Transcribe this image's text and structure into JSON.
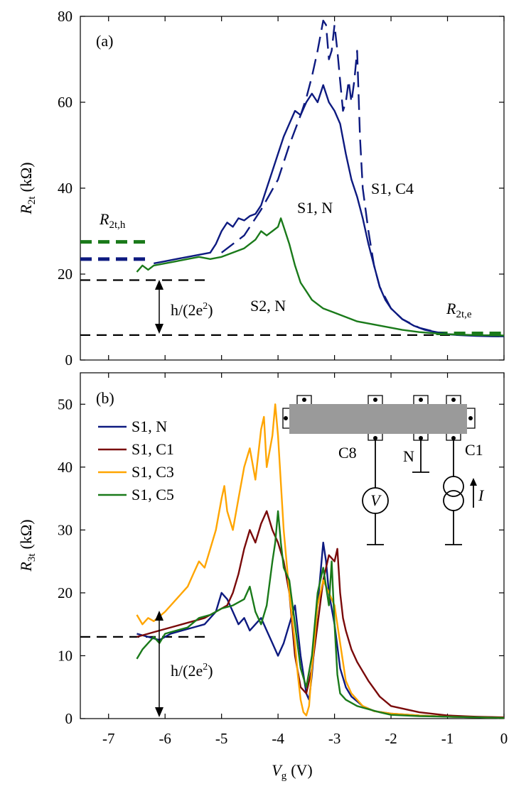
{
  "chart_data": [
    {
      "panel": "(a)",
      "type": "line",
      "xlabel": "V_g (V)",
      "ylabel": "R_2t (kΩ)",
      "xlim": [
        -7.5,
        0
      ],
      "ylim": [
        0,
        80
      ],
      "xticks": [
        -7,
        -6,
        -5,
        -4,
        -3,
        -2,
        -1,
        0
      ],
      "xtick_labels": [
        "-7",
        "-6",
        "-5",
        "-4",
        "-3",
        "-2",
        "-1",
        "0"
      ],
      "yticks": [
        0,
        20,
        40,
        60,
        80
      ],
      "ytick_labels": [
        "0",
        "20",
        "40",
        "60",
        "80"
      ],
      "series": [
        {
          "name": "S1, N",
          "color": "#0d1a80",
          "style": "solid",
          "x": [
            -6.2,
            -6.0,
            -5.8,
            -5.6,
            -5.4,
            -5.2,
            -5.1,
            -5.0,
            -4.9,
            -4.8,
            -4.7,
            -4.6,
            -4.5,
            -4.4,
            -4.3,
            -4.2,
            -4.1,
            -4.0,
            -3.9,
            -3.8,
            -3.7,
            -3.6,
            -3.5,
            -3.4,
            -3.3,
            -3.2,
            -3.1,
            -3.0,
            -2.9,
            -2.8,
            -2.7,
            -2.6,
            -2.5,
            -2.4,
            -2.3,
            -2.2,
            -2.1,
            -2.0,
            -1.8,
            -1.6,
            -1.4,
            -1.2,
            -1.0,
            -0.8,
            -0.5,
            -0.2,
            0.0
          ],
          "y": [
            22.5,
            23.0,
            23.5,
            24.0,
            24.5,
            25.0,
            27.0,
            30.0,
            32.0,
            31.0,
            33.0,
            32.5,
            33.5,
            34.0,
            36.0,
            40.0,
            44.0,
            48.0,
            52.0,
            55.0,
            58.0,
            57.0,
            60.0,
            62.0,
            60.0,
            64.0,
            60.0,
            58.0,
            55.0,
            48.0,
            42.0,
            38.0,
            33.0,
            27.0,
            22.0,
            17.0,
            14.0,
            12.0,
            9.5,
            8.0,
            7.0,
            6.5,
            6.0,
            5.8,
            5.6,
            5.5,
            5.5
          ]
        },
        {
          "name": "S1, C4",
          "color": "#0d1a80",
          "style": "dashed",
          "x": [
            -5.0,
            -4.6,
            -4.3,
            -4.0,
            -3.8,
            -3.6,
            -3.5,
            -3.4,
            -3.3,
            -3.2,
            -3.15,
            -3.1,
            -3.05,
            -3.0,
            -2.95,
            -2.9,
            -2.85,
            -2.8,
            -2.75,
            -2.7,
            -2.65,
            -2.6,
            -2.55,
            -2.5,
            -2.4,
            -2.3,
            -2.2,
            -2.0,
            -1.8,
            -1.5,
            -1.2,
            -1.0,
            -0.5,
            0.0
          ],
          "y": [
            25.0,
            29.0,
            35.0,
            42.0,
            50.0,
            57.0,
            61.0,
            66.0,
            72.0,
            79.0,
            78.0,
            70.0,
            72.0,
            78.0,
            72.0,
            65.0,
            58.0,
            60.0,
            65.0,
            60.0,
            65.0,
            72.0,
            52.0,
            40.0,
            30.0,
            22.0,
            17.0,
            12.0,
            9.5,
            7.5,
            6.5,
            6.0,
            5.7,
            5.5
          ]
        },
        {
          "name": "S2, N",
          "color": "#1a7a1a",
          "style": "solid",
          "x": [
            -6.5,
            -6.4,
            -6.3,
            -6.2,
            -6.0,
            -5.8,
            -5.6,
            -5.4,
            -5.2,
            -5.0,
            -4.8,
            -4.6,
            -4.4,
            -4.3,
            -4.2,
            -4.1,
            -4.0,
            -3.95,
            -3.9,
            -3.8,
            -3.7,
            -3.6,
            -3.5,
            -3.4,
            -3.3,
            -3.2,
            -3.0,
            -2.8,
            -2.6,
            -2.4,
            -2.2,
            -2.0,
            -1.8,
            -1.5,
            -1.2,
            -1.0,
            -0.5,
            0.0
          ],
          "y": [
            20.5,
            22.0,
            21.0,
            22.0,
            22.5,
            23.0,
            23.5,
            24.0,
            23.5,
            24.0,
            25.0,
            26.0,
            28.0,
            30.0,
            29.0,
            30.0,
            31.0,
            33.0,
            31.0,
            27.0,
            22.0,
            18.0,
            16.0,
            14.0,
            13.0,
            12.0,
            11.0,
            10.0,
            9.0,
            8.5,
            8.0,
            7.5,
            7.0,
            6.5,
            6.2,
            6.0,
            5.8,
            5.7
          ]
        }
      ],
      "hlines": [
        {
          "name": "R_2t,h S2",
          "y": 27.5,
          "x_from": -7.5,
          "x_to": -6.3,
          "color": "#1a7a1a",
          "style": "dashed-thick"
        },
        {
          "name": "R_2t,h S1",
          "y": 23.5,
          "x_from": -7.5,
          "x_to": -6.3,
          "color": "#0d1a80",
          "style": "dashed-thick"
        },
        {
          "name": "upper reference",
          "y": 18.6,
          "x_from": -7.5,
          "x_to": -5.2,
          "color": "#000000",
          "style": "dashed"
        },
        {
          "name": "lower reference",
          "y": 5.8,
          "x_from": -7.5,
          "x_to": 0,
          "color": "#000000",
          "style": "dashed"
        },
        {
          "name": "R_2t,e",
          "y": 6.2,
          "x_from": -1.2,
          "x_to": 0,
          "color": "#1a7a1a",
          "style": "dashed-thick"
        }
      ],
      "annotations": [
        "S1, N",
        "S1, C4",
        "S2, N",
        "R_2t,h",
        "R_2t,e",
        "h/(2e^2)"
      ]
    },
    {
      "panel": "(b)",
      "type": "line",
      "xlabel": "V_g (V)",
      "ylabel": "R_3t (kΩ)",
      "xlim": [
        -7.5,
        0
      ],
      "ylim": [
        0,
        55
      ],
      "xticks": [
        -7,
        -6,
        -5,
        -4,
        -3,
        -2,
        -1,
        0
      ],
      "xtick_labels": [
        "-7",
        "-6",
        "-5",
        "-4",
        "-3",
        "-2",
        "-1",
        "0"
      ],
      "yticks": [
        0,
        10,
        20,
        30,
        40,
        50
      ],
      "ytick_labels": [
        "0",
        "10",
        "20",
        "30",
        "40",
        "50"
      ],
      "legend": "top-left",
      "series": [
        {
          "name": "S1, N",
          "color": "#0d1a80",
          "style": "solid",
          "x": [
            -6.5,
            -6.3,
            -6.1,
            -5.9,
            -5.7,
            -5.5,
            -5.3,
            -5.1,
            -5.0,
            -4.9,
            -4.8,
            -4.7,
            -4.6,
            -4.5,
            -4.4,
            -4.3,
            -4.2,
            -4.1,
            -4.0,
            -3.9,
            -3.8,
            -3.7,
            -3.6,
            -3.5,
            -3.45,
            -3.4,
            -3.3,
            -3.2,
            -3.15,
            -3.1,
            -3.0,
            -2.9,
            -2.8,
            -2.7,
            -2.5,
            -2.3,
            -2.0,
            -1.5,
            -1.0,
            -0.5,
            0.0
          ],
          "y": [
            13.5,
            13.0,
            12.5,
            13.5,
            14.0,
            14.5,
            15.0,
            17.0,
            20.0,
            19.0,
            17.0,
            15.0,
            16.0,
            14.0,
            15.0,
            16.0,
            14.0,
            12.0,
            10.0,
            12.0,
            15.0,
            18.0,
            10.0,
            4.0,
            3.0,
            7.0,
            18.0,
            28.0,
            25.0,
            20.0,
            15.0,
            8.0,
            5.0,
            3.5,
            2.0,
            1.2,
            0.8,
            0.5,
            0.3,
            0.2,
            0.1
          ]
        },
        {
          "name": "S1, C1",
          "color": "#7a0a0a",
          "style": "solid",
          "x": [
            -6.5,
            -6.3,
            -6.1,
            -5.9,
            -5.7,
            -5.5,
            -5.3,
            -5.1,
            -4.9,
            -4.8,
            -4.7,
            -4.6,
            -4.5,
            -4.4,
            -4.3,
            -4.2,
            -4.1,
            -4.0,
            -3.9,
            -3.8,
            -3.7,
            -3.6,
            -3.5,
            -3.4,
            -3.3,
            -3.2,
            -3.1,
            -3.0,
            -2.95,
            -2.9,
            -2.85,
            -2.8,
            -2.7,
            -2.6,
            -2.4,
            -2.2,
            -2.0,
            -1.5,
            -1.0,
            -0.5,
            0.0
          ],
          "y": [
            13.0,
            13.5,
            14.0,
            14.5,
            15.0,
            15.5,
            16.0,
            17.0,
            18.0,
            20.0,
            23.0,
            27.0,
            30.0,
            28.0,
            31.0,
            33.0,
            30.0,
            28.0,
            25.0,
            20.0,
            10.0,
            5.0,
            4.0,
            8.0,
            15.0,
            22.0,
            26.0,
            25.0,
            27.0,
            20.0,
            16.0,
            14.0,
            11.0,
            9.0,
            6.0,
            3.5,
            2.0,
            1.0,
            0.5,
            0.3,
            0.2
          ]
        },
        {
          "name": "S1, C3",
          "color": "#ffa500",
          "style": "solid",
          "x": [
            -6.5,
            -6.4,
            -6.3,
            -6.2,
            -6.0,
            -5.8,
            -5.6,
            -5.5,
            -5.4,
            -5.3,
            -5.2,
            -5.1,
            -5.0,
            -4.95,
            -4.9,
            -4.8,
            -4.7,
            -4.6,
            -4.5,
            -4.4,
            -4.3,
            -4.25,
            -4.2,
            -4.1,
            -4.05,
            -4.0,
            -3.9,
            -3.8,
            -3.7,
            -3.65,
            -3.6,
            -3.55,
            -3.5,
            -3.45,
            -3.4,
            -3.3,
            -3.2,
            -3.1,
            -3.0,
            -2.9,
            -2.8,
            -2.7,
            -2.5,
            -2.3,
            -2.0,
            -1.5,
            -1.0,
            -0.5,
            0.0
          ],
          "y": [
            16.5,
            15.0,
            16.0,
            15.5,
            17.0,
            19.0,
            21.0,
            23.0,
            25.0,
            24.0,
            27.0,
            30.0,
            35.0,
            37.0,
            33.0,
            30.0,
            35.0,
            40.0,
            43.0,
            38.0,
            46.0,
            48.0,
            40.0,
            45.0,
            50.0,
            45.0,
            30.0,
            20.0,
            12.0,
            7.0,
            3.0,
            1.0,
            0.5,
            2.0,
            8.0,
            18.0,
            22.0,
            20.0,
            18.0,
            12.0,
            6.0,
            4.0,
            2.0,
            1.2,
            0.8,
            0.5,
            0.3,
            0.2,
            0.1
          ]
        },
        {
          "name": "S1, C5",
          "color": "#1a7a1a",
          "style": "solid",
          "x": [
            -6.5,
            -6.4,
            -6.3,
            -6.2,
            -6.1,
            -6.0,
            -5.8,
            -5.6,
            -5.4,
            -5.2,
            -5.0,
            -4.8,
            -4.6,
            -4.5,
            -4.4,
            -4.3,
            -4.2,
            -4.1,
            -4.05,
            -4.0,
            -3.95,
            -3.9,
            -3.8,
            -3.7,
            -3.6,
            -3.5,
            -3.4,
            -3.3,
            -3.2,
            -3.1,
            -3.05,
            -3.0,
            -2.95,
            -2.9,
            -2.8,
            -2.6,
            -2.4,
            -2.2,
            -2.0,
            -1.5,
            -1.0,
            -0.5,
            0.0
          ],
          "y": [
            9.5,
            11.0,
            12.0,
            13.0,
            12.0,
            13.5,
            14.0,
            14.5,
            16.0,
            16.5,
            17.5,
            18.0,
            19.0,
            21.0,
            17.0,
            15.0,
            18.0,
            25.0,
            28.0,
            33.0,
            28.0,
            24.0,
            22.0,
            15.0,
            8.0,
            5.0,
            10.0,
            20.0,
            24.0,
            18.0,
            25.0,
            15.0,
            7.0,
            4.0,
            3.0,
            2.0,
            1.5,
            1.0,
            0.6,
            0.4,
            0.3,
            0.2,
            0.1
          ]
        }
      ],
      "hlines": [
        {
          "name": "reference",
          "y": 13.0,
          "x_from": -7.5,
          "x_to": -5.2,
          "color": "#000000",
          "style": "dashed"
        }
      ],
      "annotations": [
        "h/(2e^2)"
      ],
      "inset": {
        "description": "circuit schematic",
        "labels": [
          "C8",
          "N",
          "C1",
          "V",
          "I"
        ]
      }
    }
  ],
  "text": {
    "panel_a": "(a)",
    "panel_b": "(b)",
    "ylabel_a_main": "R",
    "ylabel_a_sub": "2t",
    "ylabel_a_unit": "(kΩ)",
    "ylabel_b_main": "R",
    "ylabel_b_sub": "3t",
    "ylabel_b_unit": "(kΩ)",
    "xlabel_main": "V",
    "xlabel_sub": "g",
    "xlabel_unit": "(V)",
    "ann_s1n": "S1, N",
    "ann_s1c4": "S1, C4",
    "ann_s2n": "S2, N",
    "ann_r2th_main": "R",
    "ann_r2th_sub": "2t,h",
    "ann_r2te_main": "R",
    "ann_r2te_sub": "2t,e",
    "hq_a_pre": "h/(2e",
    "hq_a_sup": "2",
    "hq_a_post": ")",
    "hq_b_pre": "h/(2e",
    "hq_b_sup": "2",
    "hq_b_post": ")",
    "legend_1": "S1, N",
    "legend_2": "S1, C1",
    "legend_3": "S1, C3",
    "legend_4": "S1, C5",
    "inset_c8": "C8",
    "inset_n": "N",
    "inset_c1": "C1",
    "inset_v": "V",
    "inset_i": "I"
  }
}
